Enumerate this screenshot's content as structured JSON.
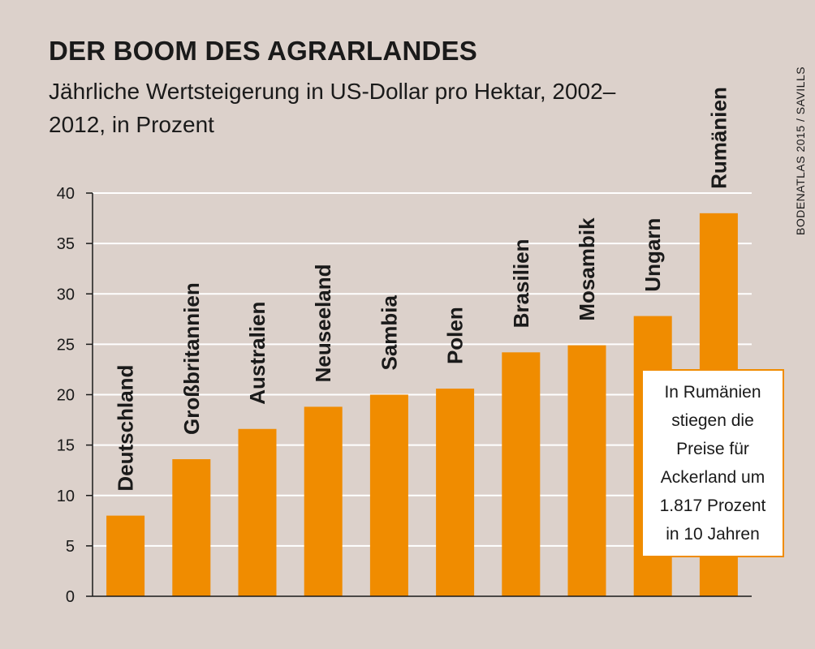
{
  "title": "DER BOOM DES AGRARLANDES",
  "subtitle": "Jährliche Wertsteigerung in US-Dollar pro Hektar, 2002–2012, in Prozent",
  "source": "BODENATLAS 2015 / SAVILLS",
  "callout": "In Rumänien stiegen die Preise für Ackerland um 1.817 Prozent in 10 Jahren",
  "colors": {
    "bar": "#f08c00",
    "background": "#dcd1cb",
    "grid": "#ffffff",
    "text": "#1a1a1a"
  },
  "chart_data": {
    "type": "bar",
    "categories": [
      "Deutschland",
      "Großbritannien",
      "Australien",
      "Neuseeland",
      "Sambia",
      "Polen",
      "Brasilien",
      "Mosambik",
      "Ungarn",
      "Rumänien"
    ],
    "values": [
      8,
      13.6,
      16.6,
      18.8,
      20,
      20.6,
      24.2,
      24.9,
      27.8,
      38
    ],
    "ylim": [
      0,
      40
    ],
    "yticks": [
      0,
      5,
      10,
      15,
      20,
      25,
      30,
      35,
      40
    ],
    "grid": true
  }
}
